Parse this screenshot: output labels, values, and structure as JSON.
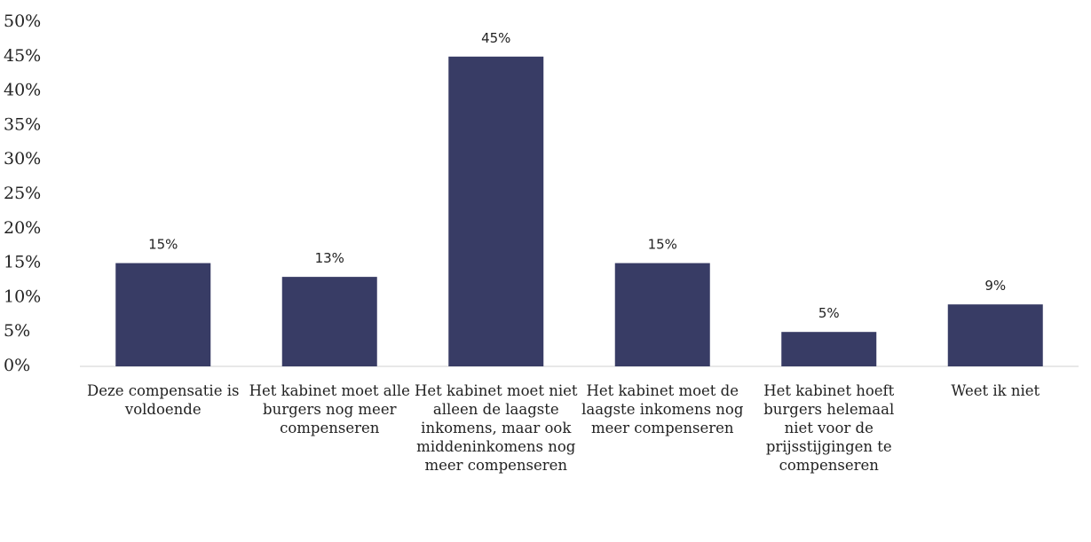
{
  "chart_data": {
    "type": "bar",
    "categories": [
      "Deze compensatie is voldoende",
      "Het kabinet moet alle burgers nog meer compenseren",
      "Het kabinet moet niet alleen de laagste inkomens, maar ook middeninkomens nog meer compenseren",
      "Het kabinet moet de laagste inkomens nog meer compenseren",
      "Het kabinet hoeft burgers helemaal niet voor de prijsstijgingen te compenseren",
      "Weet ik niet"
    ],
    "values": [
      15,
      13,
      45,
      15,
      5,
      9
    ],
    "value_labels": [
      "15%",
      "13%",
      "45%",
      "15%",
      "5%",
      "9%"
    ],
    "color": "#383c65",
    "ylim": [
      0,
      50
    ],
    "yticks": [
      {
        "value": 0,
        "label": "0%"
      },
      {
        "value": 5,
        "label": "5%"
      },
      {
        "value": 10,
        "label": "10%"
      },
      {
        "value": 15,
        "label": "15%"
      },
      {
        "value": 20,
        "label": "20%"
      },
      {
        "value": 25,
        "label": "25%"
      },
      {
        "value": 30,
        "label": "30%"
      },
      {
        "value": 35,
        "label": "35%"
      },
      {
        "value": 40,
        "label": "40%"
      },
      {
        "value": 45,
        "label": "45%"
      },
      {
        "value": 50,
        "label": "50%"
      }
    ]
  }
}
